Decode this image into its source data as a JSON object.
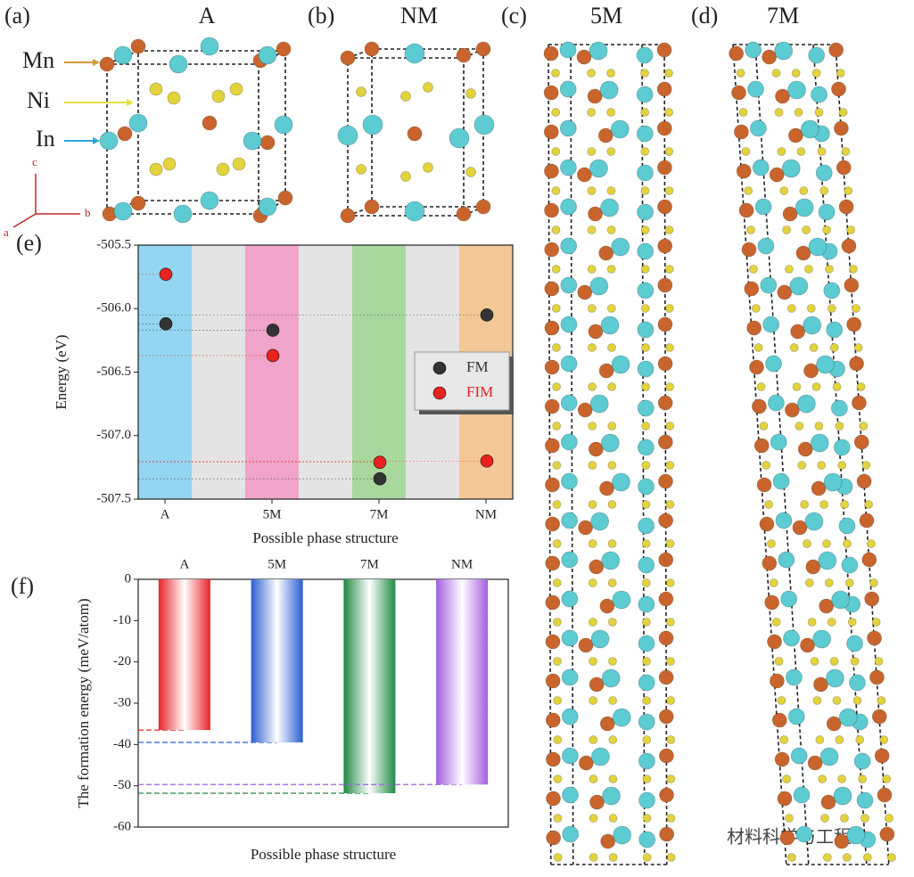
{
  "panel_labels": [
    "(a)",
    "(b)",
    "(c)",
    "(d)",
    "(e)",
    "(f)"
  ],
  "structure_titles": [
    "A",
    "NM",
    "5M",
    "7M"
  ],
  "element_labels": [
    "Mn",
    "Ni",
    "In"
  ],
  "axis_labels": [
    "c",
    "b",
    "a"
  ],
  "watermark": "材料科学与工程",
  "chart_data": [
    {
      "type": "scatter",
      "categories": [
        "A",
        "5M",
        "7M",
        "NM"
      ],
      "series": [
        {
          "name": "FM",
          "color": "#333333",
          "values": [
            -506.12,
            -506.17,
            -507.34,
            -506.05
          ]
        },
        {
          "name": "FIM",
          "color": "#e8231f",
          "values": [
            -505.73,
            -506.37,
            -507.21,
            -507.2
          ]
        }
      ],
      "ylim": [
        -507.5,
        -505.5
      ],
      "yticks": [
        -505.5,
        {
          "value": -506,
          "label": "-506.0"
        },
        -506.5,
        {
          "value": -507,
          "label": "-507.0"
        },
        -507.5
      ],
      "ylabel": "Energy (eV)",
      "xlabel": "Possible phase structure",
      "category_colors": [
        "#93d6f2",
        "#f0a4c9",
        "#a9d89f",
        "#f4c796"
      ],
      "gap_color": "#e4e4e4",
      "legend": "right"
    },
    {
      "type": "bar",
      "categories": [
        "A",
        "5M",
        "7M",
        "NM"
      ],
      "values": [
        -36.5,
        -39.5,
        -51.8,
        -49.7
      ],
      "colors": [
        "#e8232a",
        "#2a5fd0",
        "#1f8a45",
        "#a45ee0"
      ],
      "ylim": [
        -60,
        0
      ],
      "yticks": [
        0,
        -10,
        -20,
        -30,
        -40,
        -50,
        -60
      ],
      "ylabel": "The formation energy (meV/atom)",
      "xlabel": "Possible phase structure"
    }
  ]
}
